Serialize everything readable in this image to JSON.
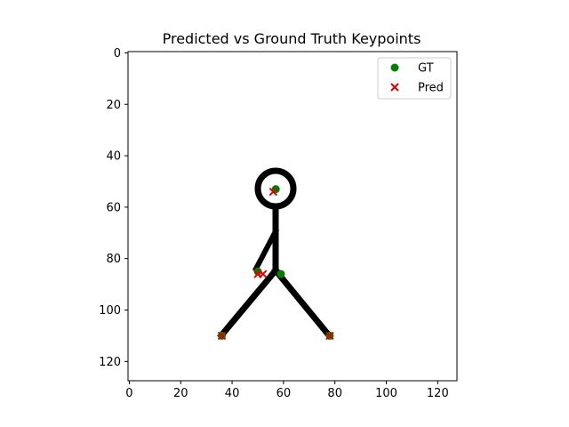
{
  "chart_data": {
    "type": "scatter",
    "title": "Predicted vs Ground Truth Keypoints",
    "xlabel": "",
    "ylabel": "",
    "xlim": [
      -0.5,
      127.5
    ],
    "ylim": [
      127.5,
      -0.5
    ],
    "y_inverted": true,
    "xticks": [
      0,
      20,
      40,
      60,
      80,
      100,
      120
    ],
    "yticks": [
      0,
      20,
      40,
      60,
      80,
      100,
      120
    ],
    "grid": false,
    "legend": {
      "placement": "top-right"
    },
    "background_image": "stick-figure",
    "series": [
      {
        "name": "GT",
        "marker": "circle",
        "color": "#008000",
        "points": [
          {
            "x": 57,
            "y": 53
          },
          {
            "x": 50,
            "y": 85
          },
          {
            "x": 59,
            "y": 86
          },
          {
            "x": 36,
            "y": 110
          },
          {
            "x": 78,
            "y": 110
          }
        ]
      },
      {
        "name": "Pred",
        "marker": "x",
        "color": "#e00000",
        "points": [
          {
            "x": 56,
            "y": 54
          },
          {
            "x": 50,
            "y": 86
          },
          {
            "x": 52,
            "y": 86
          },
          {
            "x": 36,
            "y": 110
          },
          {
            "x": 78,
            "y": 110
          }
        ]
      }
    ]
  }
}
